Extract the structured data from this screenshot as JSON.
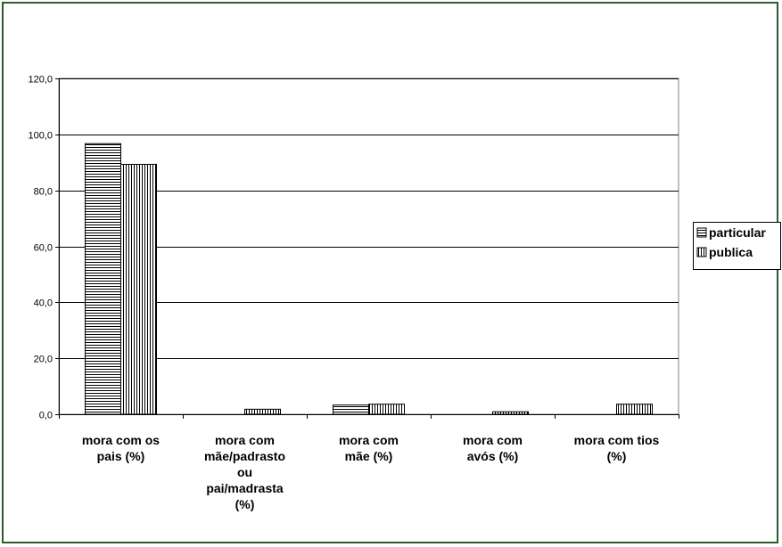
{
  "chart_data": {
    "type": "bar",
    "categories": [
      "mora com os pais (%)",
      "mora com mãe/padrasto ou pai/madrasta (%)",
      "mora com mãe (%)",
      "mora com avós (%)",
      "mora com tios (%)"
    ],
    "category_label_lines": [
      [
        "mora com os",
        "pais (%)"
      ],
      [
        "mora com",
        "mãe/padrasto",
        "ou",
        "pai/madrasta",
        "(%)"
      ],
      [
        "mora com",
        "mãe (%)"
      ],
      [
        "mora com",
        "avós (%)"
      ],
      [
        "mora com tios",
        "(%)"
      ]
    ],
    "series": [
      {
        "name": "particular",
        "values": [
          96.7,
          0.0,
          3.3,
          0.0,
          0.0
        ],
        "pattern": "horizontal-lines"
      },
      {
        "name": "publica",
        "values": [
          89.3,
          1.8,
          3.6,
          0.9,
          3.6
        ],
        "pattern": "vertical-lines"
      }
    ],
    "ylim": [
      0,
      120
    ],
    "y_ticks": [
      "0,0",
      "20,0",
      "40,0",
      "60,0",
      "80,0",
      "100,0",
      "120,0"
    ],
    "grid": true,
    "legend_position": "right",
    "title": "",
    "xlabel": "",
    "ylabel": ""
  }
}
